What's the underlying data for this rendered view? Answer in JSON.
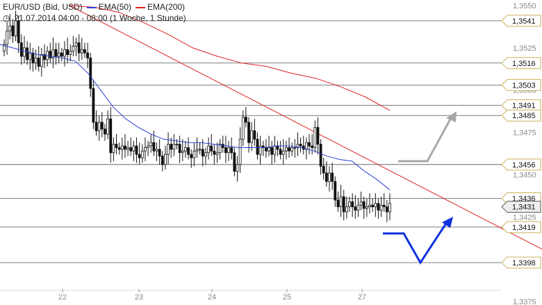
{
  "header": {
    "symbol": "EUR/USD (Bid, USD)",
    "ema50_label": "EMA(50)",
    "ema200_label": "EMA(200)",
    "period": "21.07.2014 04:00 - 08:00 (1 Woche, 1 Stunde)"
  },
  "colors": {
    "ema50": "#2b3fd6",
    "ema200": "#e02020",
    "trend": "#e02020",
    "level_line": "#555555",
    "candle": "#111111",
    "arrow_up_gray": "#a8a8a8",
    "arrow_blue": "#1030e0",
    "label_border": "#c9b25a"
  },
  "chart_data": {
    "type": "candlestick",
    "ylim": [
      1.3375,
      1.355
    ],
    "y_ticks": [
      "1,3550",
      "1,3525",
      "1,3500",
      "1,3475",
      "1,3450",
      "1,3425",
      "1,3400",
      "1,3375"
    ],
    "x_ticks": [
      "22",
      "23",
      "24",
      "25",
      "27"
    ],
    "price_levels": [
      {
        "label": "1,3541",
        "value": 1.3541
      },
      {
        "label": "1,3516",
        "value": 1.3516
      },
      {
        "label": "1,3503",
        "value": 1.3503
      },
      {
        "label": "1,3491",
        "value": 1.3491
      },
      {
        "label": "1,3485",
        "value": 1.3485
      },
      {
        "label": "1,3456",
        "value": 1.3456
      },
      {
        "label": "1,3436",
        "value": 1.3436
      },
      {
        "label": "1,3419",
        "value": 1.3419
      },
      {
        "label": "1,3398",
        "value": 1.3398
      }
    ],
    "current_price": {
      "label": "1,3431",
      "value": 1.3431
    },
    "candles_close": [
      1.3527,
      1.3535,
      1.3538,
      1.3532,
      1.3541,
      1.3528,
      1.352,
      1.3525,
      1.3518,
      1.3522,
      1.3516,
      1.3519,
      1.3514,
      1.3521,
      1.3518,
      1.3523,
      1.3519,
      1.3524,
      1.352,
      1.3522,
      1.352,
      1.3524,
      1.3521,
      1.3523,
      1.3526,
      1.3528,
      1.3522,
      1.3524,
      1.3522,
      1.3519,
      1.3501,
      1.3481,
      1.3476,
      1.3481,
      1.3477,
      1.3474,
      1.3483,
      1.3463,
      1.3468,
      1.3466,
      1.3465,
      1.3467,
      1.3465,
      1.3466,
      1.3464,
      1.3467,
      1.3462,
      1.346,
      1.3464,
      1.3466,
      1.3467,
      1.3469,
      1.3464,
      1.3465,
      1.3461,
      1.3456,
      1.3462,
      1.3468,
      1.3465,
      1.3468,
      1.3468,
      1.3463,
      1.3464,
      1.3466,
      1.3462,
      1.346,
      1.3464,
      1.3465,
      1.3465,
      1.3461,
      1.3463,
      1.3467,
      1.3464,
      1.3462,
      1.3463,
      1.3468,
      1.3466,
      1.3463,
      1.3466,
      1.3463,
      1.3452,
      1.3456,
      1.3471,
      1.3484,
      1.3481,
      1.3469,
      1.3476,
      1.3471,
      1.3462,
      1.3467,
      1.3466,
      1.3464,
      1.3466,
      1.3462,
      1.3467,
      1.3465,
      1.3462,
      1.3464,
      1.3466,
      1.3464,
      1.3466,
      1.3466,
      1.3468,
      1.3467,
      1.3465,
      1.3469,
      1.3467,
      1.3466,
      1.3478,
      1.3468,
      1.3455,
      1.3451,
      1.3446,
      1.3451,
      1.3446,
      1.3435,
      1.3431,
      1.3437,
      1.3428,
      1.3431,
      1.3434,
      1.3431,
      1.3429,
      1.3432,
      1.3434,
      1.343,
      1.3431,
      1.3432,
      1.3431,
      1.3433,
      1.3429,
      1.3432,
      1.3431,
      1.3428,
      1.3433
    ],
    "ema50": [
      1.3527,
      1.3525,
      1.3523,
      1.3521,
      1.352,
      1.3519,
      1.3517,
      1.351,
      1.35,
      1.349,
      1.3483,
      1.3478,
      1.3474,
      1.3471,
      1.347,
      1.3469,
      1.3469,
      1.3468,
      1.3467,
      1.3466,
      1.3466,
      1.3466,
      1.3467,
      1.3467,
      1.3466,
      1.3464,
      1.3461,
      1.3459,
      1.3458,
      1.3452,
      1.3447,
      1.3441
    ],
    "ema200": [
      1.355,
      1.3549,
      1.3546,
      1.354,
      1.3533,
      1.3525,
      1.352,
      1.3516,
      1.3514,
      1.351,
      1.3507,
      1.3502,
      1.3496,
      1.3488
    ],
    "annotations": [
      {
        "type": "downtrend-line",
        "from": 1.355,
        "to": 1.3406
      },
      {
        "type": "scenario-arrow-up",
        "color": "gray"
      },
      {
        "type": "scenario-arrow-down-up",
        "color": "blue"
      }
    ]
  }
}
